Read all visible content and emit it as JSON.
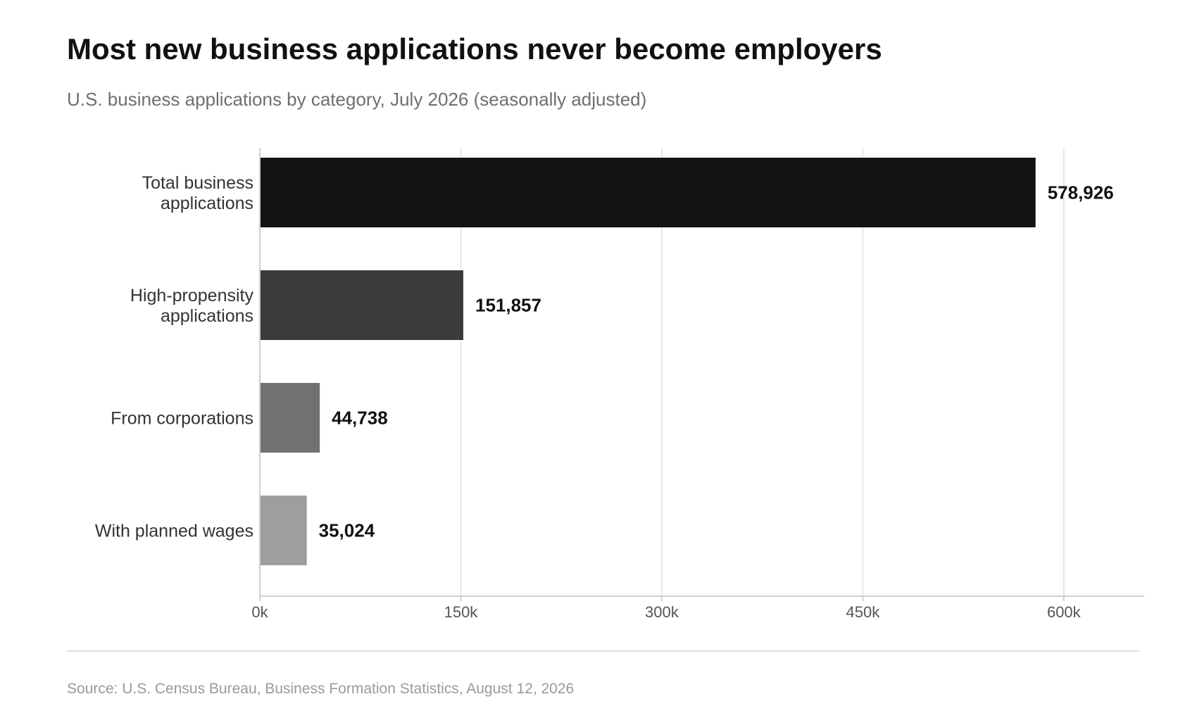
{
  "header": {
    "title": "Most new business applications never become employers",
    "subtitle": "U.S. business applications by category, July 2026 (seasonally adjusted)"
  },
  "footer": {
    "source": "Source: U.S. Census Bureau, Business Formation Statistics, August 12, 2026"
  },
  "chart_data": {
    "type": "bar",
    "orientation": "horizontal",
    "categories": [
      [
        "Total business",
        "applications"
      ],
      [
        "High-propensity",
        "applications"
      ],
      [
        "From corporations"
      ],
      [
        "With planned wages"
      ]
    ],
    "values": [
      578926,
      151857,
      44738,
      35024
    ],
    "value_labels": [
      "578,926",
      "151,857",
      "44,738",
      "35,024"
    ],
    "bar_colors": [
      "#131313",
      "#3b3b3b",
      "#717171",
      "#9e9e9e"
    ],
    "xlim": [
      0,
      660000
    ],
    "xticks": [
      0,
      150000,
      300000,
      450000,
      600000
    ],
    "xtick_labels": [
      "0k",
      "150k",
      "300k",
      "450k",
      "600k"
    ],
    "grid": "vertical",
    "legend": "none",
    "colors": {
      "grid": "#e6e6e6",
      "axis": "#cfcfcf",
      "tick_text": "#555555",
      "category_text": "#333333",
      "value_text": "#111111"
    }
  }
}
